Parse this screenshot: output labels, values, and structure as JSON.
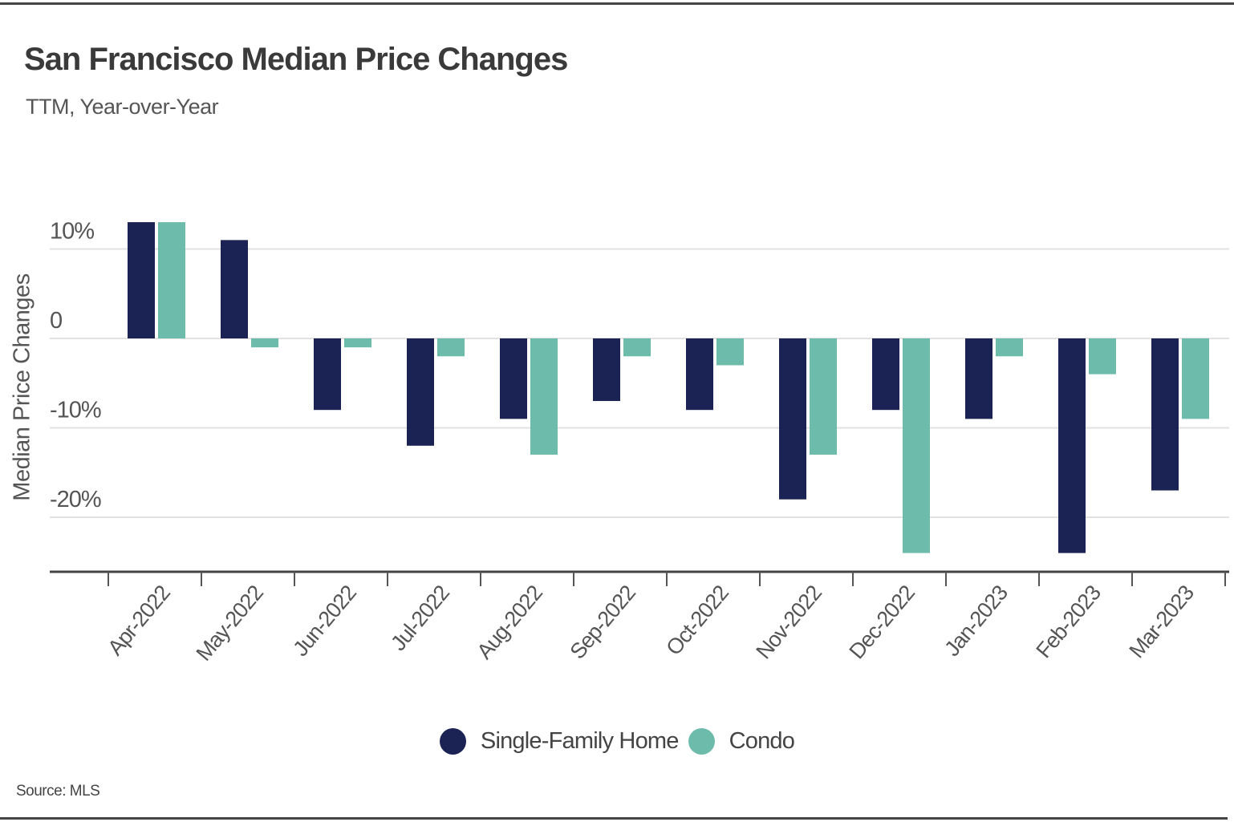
{
  "chart_data": {
    "type": "bar",
    "title": "San Francisco Median Price Changes",
    "subtitle": "TTM, Year-over-Year",
    "xlabel": "",
    "ylabel": "Median Price Changes",
    "categories": [
      "Apr-2022",
      "May-2022",
      "Jun-2022",
      "Jul-2022",
      "Aug-2022",
      "Sep-2022",
      "Oct-2022",
      "Nov-2022",
      "Dec-2022",
      "Jan-2023",
      "Feb-2023",
      "Mar-2023"
    ],
    "series": [
      {
        "name": "Single-Family Home",
        "color": "#1b2254",
        "values": [
          13,
          11,
          -8,
          -12,
          -9,
          -7,
          -8,
          -18,
          -8,
          -9,
          -24,
          -17
        ]
      },
      {
        "name": "Condo",
        "color": "#6dbcab",
        "values": [
          13,
          -1,
          -1,
          -2,
          -13,
          -2,
          -3,
          -13,
          -24,
          -2,
          -4,
          -9
        ]
      }
    ],
    "yticks": [
      {
        "value": 10,
        "label": "10%"
      },
      {
        "value": 0,
        "label": "0"
      },
      {
        "value": -10,
        "label": "-10%"
      },
      {
        "value": -20,
        "label": "-20%"
      }
    ],
    "ylim": [
      -26,
      14
    ],
    "grid": true,
    "legend_position": "bottom-center",
    "source": "Source:  MLS"
  }
}
